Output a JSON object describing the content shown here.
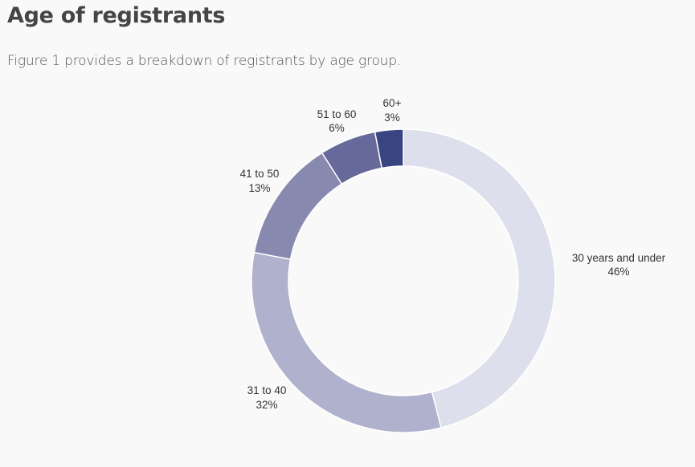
{
  "page": {
    "title": "Age of registrants",
    "intro": "Figure 1 provides a breakdown of registrants by age group."
  },
  "chart_data": {
    "type": "pie",
    "variant": "donut",
    "title": "Age of registrants",
    "categories": [
      "30 years and under",
      "31 to 40",
      "41 to 50",
      "51 to 60",
      "60+"
    ],
    "values": [
      46,
      32,
      13,
      6,
      3
    ],
    "unit": "%",
    "labels": [
      {
        "name": "30 years and under",
        "pct": "46%"
      },
      {
        "name": "31 to 40",
        "pct": "32%"
      },
      {
        "name": "41 to 50",
        "pct": "13%"
      },
      {
        "name": "51 to 60",
        "pct": "6%"
      },
      {
        "name": "60+",
        "pct": "3%"
      }
    ],
    "colors": [
      "#dedfec",
      "#b0b1cd",
      "#8889ae",
      "#66699a",
      "#394580"
    ],
    "start_angle_deg": 0,
    "direction": "clockwise",
    "legend": "none (direct labels)"
  }
}
